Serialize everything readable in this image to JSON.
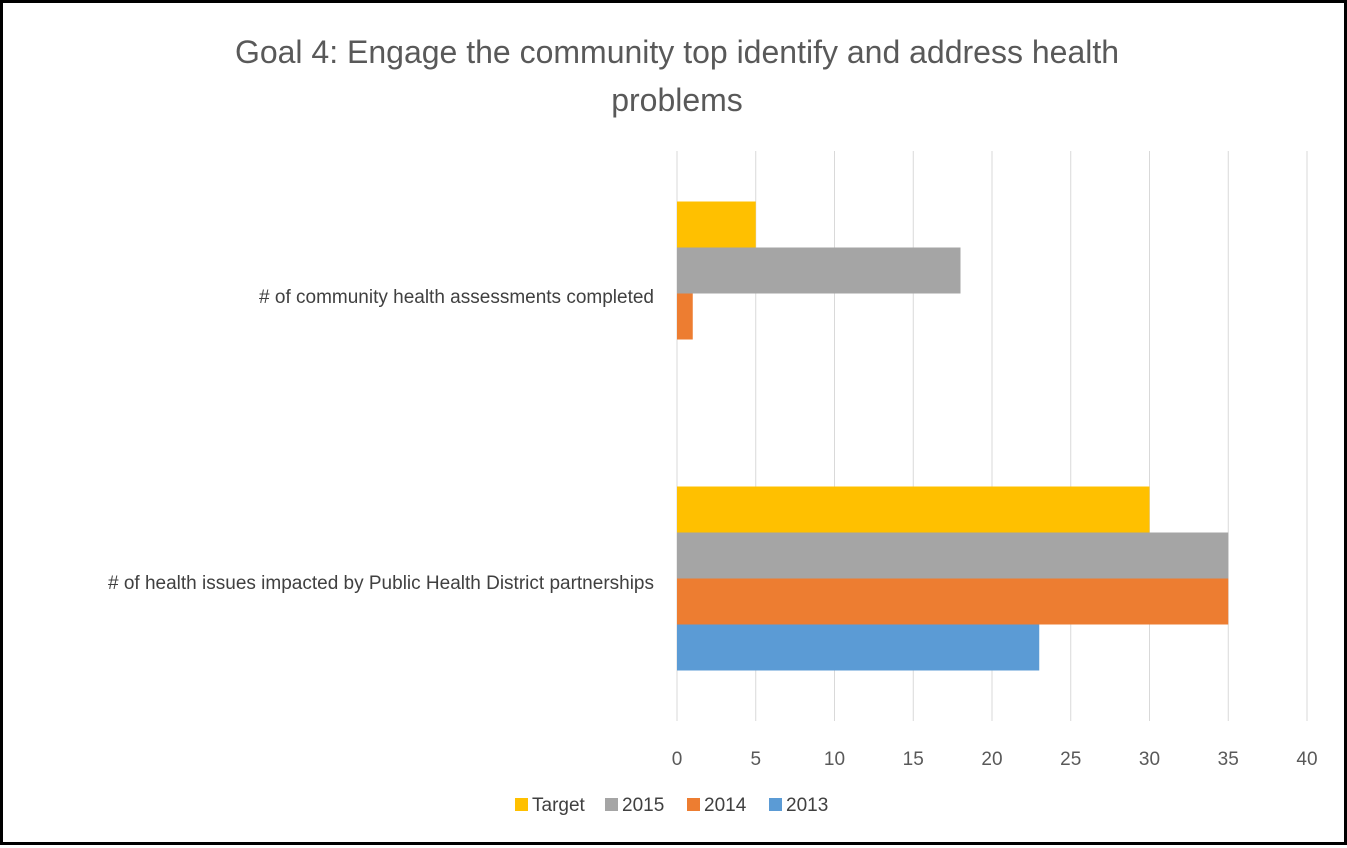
{
  "chart_data": {
    "type": "bar",
    "orientation": "horizontal",
    "title_lines": [
      "Goal 4: Engage the community top identify and address health",
      "problems"
    ],
    "categories": [
      "# of community health assessments completed",
      "# of health issues impacted by Public Health District partnerships"
    ],
    "series": [
      {
        "name": "Target",
        "color": "#FFC000",
        "values": [
          5,
          30
        ]
      },
      {
        "name": "2015",
        "color": "#A5A5A5",
        "values": [
          18,
          35
        ]
      },
      {
        "name": "2014",
        "color": "#ED7D31",
        "values": [
          1,
          35
        ]
      },
      {
        "name": "2013",
        "color": "#5B9BD5",
        "values": [
          null,
          23
        ]
      }
    ],
    "xlim": [
      0,
      40
    ],
    "xticks": [
      "0",
      "5",
      "10",
      "15",
      "20",
      "25",
      "30",
      "35",
      "40"
    ],
    "grid": "vertical",
    "legend_position": "bottom"
  }
}
